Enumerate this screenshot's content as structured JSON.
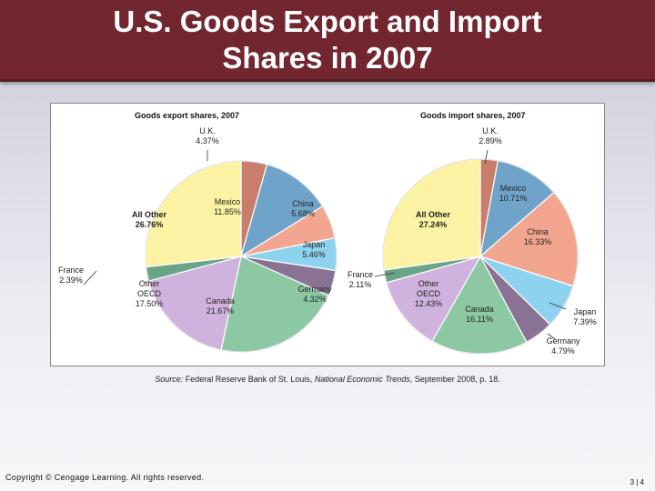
{
  "slide": {
    "title": "U.S. Goods Export and Import\nShares in 2007",
    "source_prefix": "Source:",
    "source_org": "Federal Reserve Bank of St. Louis,",
    "source_pub": "National Economic Trends",
    "source_suffix": ", September 2008, p. 18.",
    "copyright": "Copyright © Cengage Learning. All rights reserved.",
    "page_number": "3 | 4"
  },
  "chart_data": [
    {
      "type": "pie",
      "title": "Goods export shares, 2007",
      "slices": [
        {
          "name": "U.K.",
          "value": 4.37,
          "label": "4.37%",
          "color": "#c97d6b"
        },
        {
          "name": "Mexico",
          "value": 11.85,
          "label": "11.85%",
          "color": "#6fa3c9"
        },
        {
          "name": "China",
          "value": 5.68,
          "label": "5.68%",
          "color": "#f3a68f"
        },
        {
          "name": "Japan",
          "value": 5.46,
          "label": "5.46%",
          "color": "#8dd3ef"
        },
        {
          "name": "Germany",
          "value": 4.32,
          "label": "4.32%",
          "color": "#8a7294"
        },
        {
          "name": "Canada",
          "value": 21.67,
          "label": "21.67%",
          "color": "#8cc8a4"
        },
        {
          "name": "Other OECD",
          "value": 17.5,
          "label": "17.50%",
          "color": "#cfb2dd"
        },
        {
          "name": "France",
          "value": 2.39,
          "label": "2.39%",
          "color": "#6aa486"
        },
        {
          "name": "All Other",
          "value": 26.76,
          "label": "26.76%",
          "color": "#fbf3a3"
        }
      ]
    },
    {
      "type": "pie",
      "title": "Goods import shares, 2007",
      "slices": [
        {
          "name": "U.K.",
          "value": 2.89,
          "label": "2.89%",
          "color": "#c97d6b"
        },
        {
          "name": "Mexico",
          "value": 10.71,
          "label": "10.71%",
          "color": "#6fa3c9"
        },
        {
          "name": "China",
          "value": 16.33,
          "label": "16.33%",
          "color": "#f3a68f"
        },
        {
          "name": "Japan",
          "value": 7.39,
          "label": "7.39%",
          "color": "#8dd3ef"
        },
        {
          "name": "Germany",
          "value": 4.79,
          "label": "4.79%",
          "color": "#8a7294"
        },
        {
          "name": "Canada",
          "value": 16.11,
          "label": "16.11%",
          "color": "#8cc8a4"
        },
        {
          "name": "Other OECD",
          "value": 12.43,
          "label": "12.43%",
          "color": "#cfb2dd"
        },
        {
          "name": "France",
          "value": 2.11,
          "label": "2.11%",
          "color": "#6aa486"
        },
        {
          "name": "All Other",
          "value": 27.24,
          "label": "27.24%",
          "color": "#fbf3a3"
        }
      ]
    }
  ]
}
